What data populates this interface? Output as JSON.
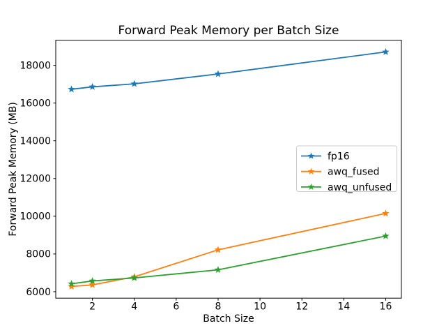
{
  "chart_data": {
    "type": "line",
    "title": "Forward Peak Memory per Batch Size",
    "xlabel": "Batch Size",
    "ylabel": "Forward Peak Memory (MB)",
    "x": [
      1,
      2,
      4,
      8,
      16
    ],
    "series": [
      {
        "name": "fp16",
        "color": "#1f77b4",
        "values": [
          16730,
          16860,
          17020,
          17540,
          18710
        ]
      },
      {
        "name": "awq_fused",
        "color": "#ff7f0e",
        "values": [
          6280,
          6360,
          6790,
          8220,
          10150
        ]
      },
      {
        "name": "awq_unfused",
        "color": "#2ca02c",
        "values": [
          6420,
          6570,
          6730,
          7160,
          8950
        ]
      }
    ],
    "xticks": [
      2,
      4,
      6,
      8,
      10,
      12,
      14,
      16
    ],
    "yticks": [
      6000,
      8000,
      10000,
      12000,
      14000,
      16000,
      18000
    ],
    "xlim": [
      0.25,
      16.75
    ],
    "ylim": [
      5658,
      19332
    ],
    "marker": "star",
    "grid": false,
    "legend": {
      "position": "center-right",
      "entries": [
        "fp16",
        "awq_fused",
        "awq_unfused"
      ]
    },
    "axis_color": "#000000",
    "legend_border_color": "#cccccc",
    "background_color": "#ffffff"
  }
}
